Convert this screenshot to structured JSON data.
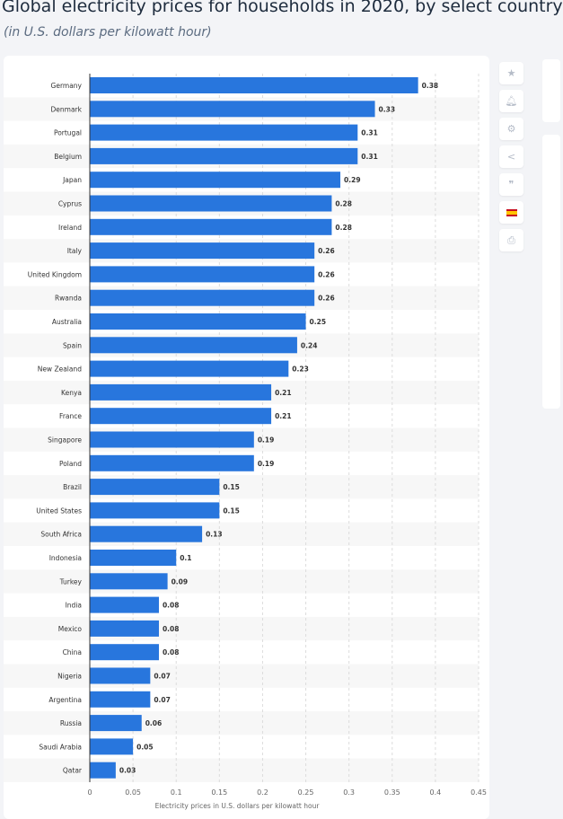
{
  "header": {
    "title": "Global electricity prices for households in 2020, by select country",
    "subtitle": "(in U.S. dollars per kilowatt hour)"
  },
  "toolbar": {
    "icons": [
      "star-icon",
      "bell-icon",
      "gear-icon",
      "share-icon",
      "quote-icon",
      "spain-flag-icon",
      "print-icon"
    ]
  },
  "chart_data": {
    "type": "bar",
    "orientation": "horizontal",
    "categories": [
      "Germany",
      "Denmark",
      "Portugal",
      "Belgium",
      "Japan",
      "Cyprus",
      "Ireland",
      "Italy",
      "United Kingdom",
      "Rwanda",
      "Australia",
      "Spain",
      "New Zealand",
      "Kenya",
      "France",
      "Singapore",
      "Poland",
      "Brazil",
      "United States",
      "South Africa",
      "Indonesia",
      "Turkey",
      "India",
      "Mexico",
      "China",
      "Nigeria",
      "Argentina",
      "Russia",
      "Saudi Arabia",
      "Qatar"
    ],
    "values": [
      0.38,
      0.33,
      0.31,
      0.31,
      0.29,
      0.28,
      0.28,
      0.26,
      0.26,
      0.26,
      0.25,
      0.24,
      0.23,
      0.21,
      0.21,
      0.19,
      0.19,
      0.15,
      0.15,
      0.13,
      0.1,
      0.09,
      0.08,
      0.08,
      0.08,
      0.07,
      0.07,
      0.06,
      0.05,
      0.03
    ],
    "data_labels": [
      "0.38",
      "0.33",
      "0.31",
      "0.31",
      "0.29",
      "0.28",
      "0.28",
      "0.26",
      "0.26",
      "0.26",
      "0.25",
      "0.24",
      "0.23",
      "0.21",
      "0.21",
      "0.19",
      "0.19",
      "0.15",
      "0.15",
      "0.13",
      "0.1",
      "0.09",
      "0.08",
      "0.08",
      "0.08",
      "0.07",
      "0.07",
      "0.06",
      "0.05",
      "0.03"
    ],
    "xlabel": "Electricity prices in U.S. dollars per kilowatt hour",
    "xlim": [
      0,
      0.45
    ],
    "xticks": [
      "0",
      "0.05",
      "0.1",
      "0.15",
      "0.2",
      "0.25",
      "0.3",
      "0.35",
      "0.4",
      "0.45"
    ],
    "grid": true,
    "bar_color": "#2876dd"
  }
}
